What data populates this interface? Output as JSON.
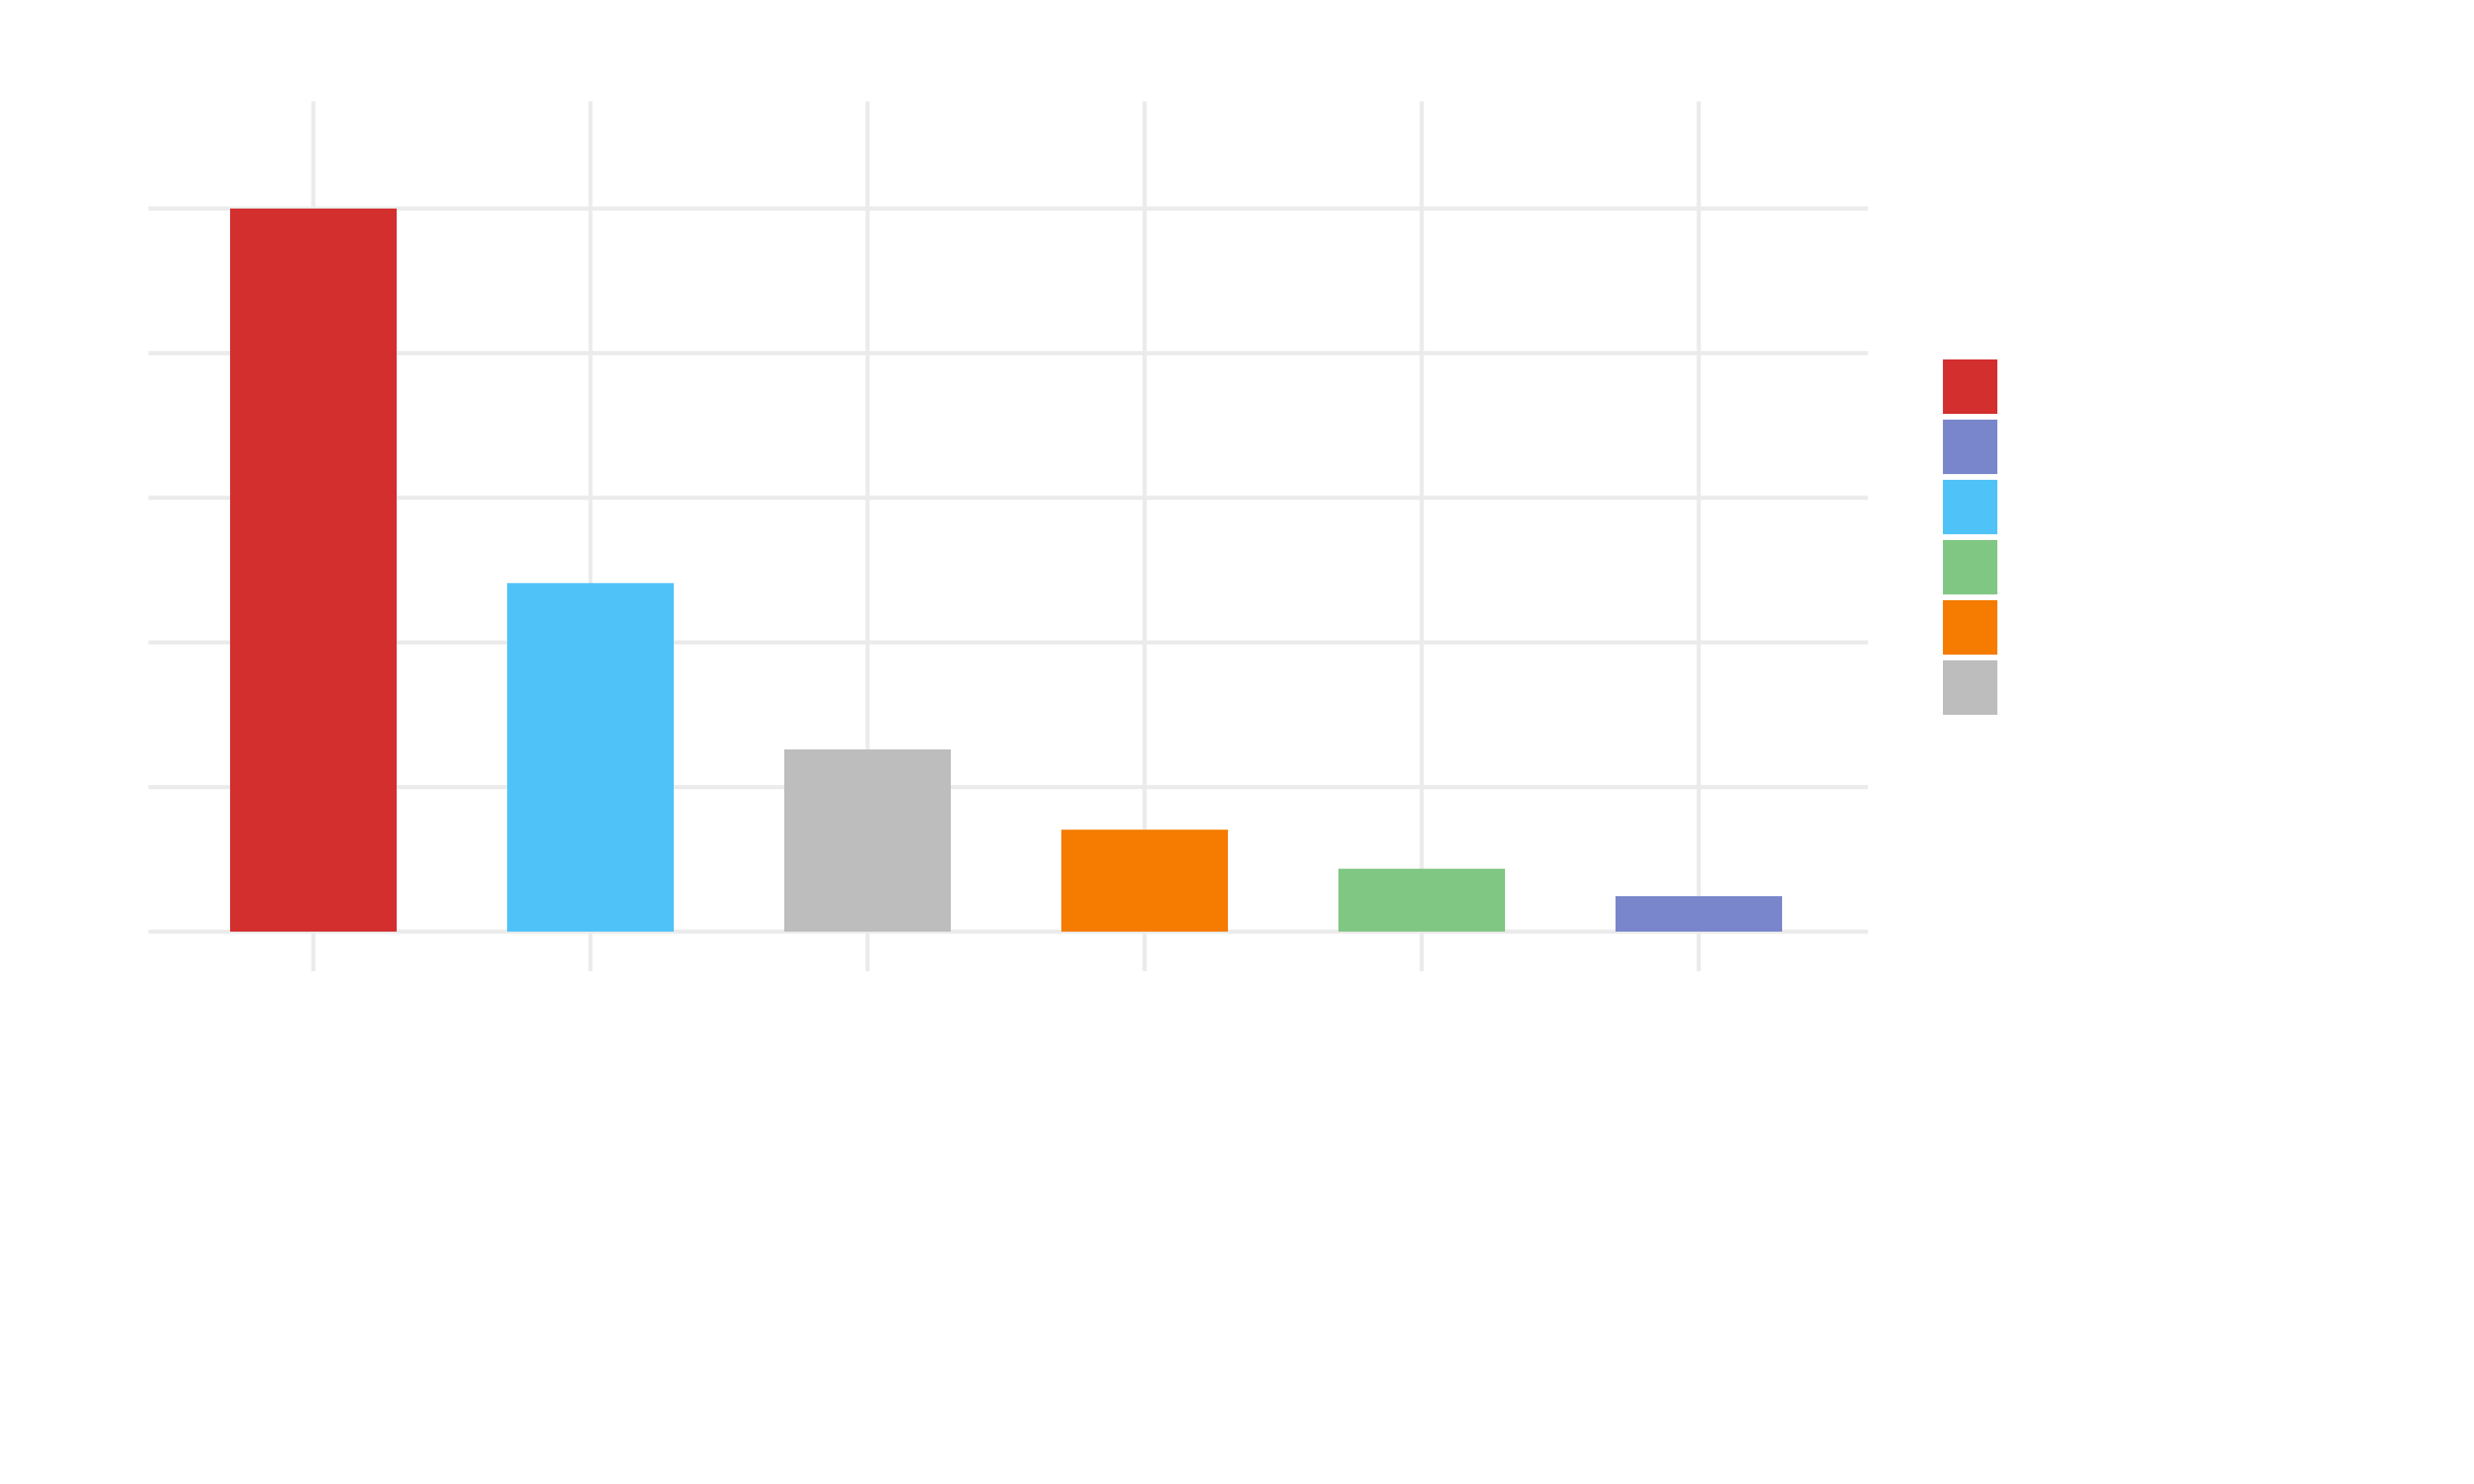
{
  "chart_data": {
    "type": "bar",
    "title": "",
    "xlabel": "",
    "ylabel": "",
    "categories": [
      "",
      "",
      "",
      "",
      "",
      ""
    ],
    "values": [
      100,
      48.2,
      25.2,
      14.1,
      8.7,
      4.9
    ],
    "ylim": [
      0,
      100
    ],
    "y_ticks": [
      0,
      20,
      40,
      60,
      80,
      100
    ],
    "grid": true,
    "legend_position": "right",
    "bar_colors": [
      "#d32f2f",
      "#4fc3f7",
      "#bdbdbd",
      "#f57c00",
      "#81c784",
      "#7986cb"
    ],
    "legend": [
      {
        "label": "",
        "color": "#d32f2f"
      },
      {
        "label": "",
        "color": "#7986cb"
      },
      {
        "label": "",
        "color": "#4fc3f7"
      },
      {
        "label": "",
        "color": "#81c784"
      },
      {
        "label": "",
        "color": "#f57c00"
      },
      {
        "label": "",
        "color": "#bdbdbd"
      }
    ]
  }
}
